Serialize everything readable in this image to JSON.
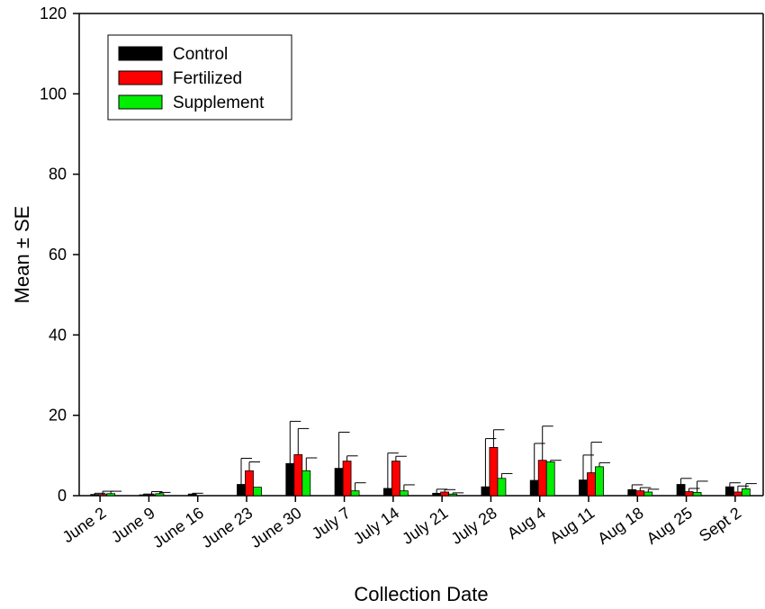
{
  "chart_data": {
    "type": "bar",
    "xlabel": "Collection Date",
    "ylabel": "Mean ± SE",
    "ylim": [
      0,
      120
    ],
    "yticks": [
      0,
      20,
      40,
      60,
      80,
      100,
      120
    ],
    "grid": false,
    "legend_position": "top-left",
    "categories": [
      "June 2",
      "June 9",
      "June 16",
      "June 23",
      "June 30",
      "July 7",
      "July 14",
      "July 21",
      "July 28",
      "Aug 4",
      "Aug 11",
      "Aug 18",
      "Aug 25",
      "Sept 2"
    ],
    "series": [
      {
        "name": "Control",
        "color": "#000000",
        "values": [
          0.3,
          0.2,
          0.4,
          2.8,
          8.0,
          6.8,
          1.8,
          0.6,
          2.2,
          3.8,
          3.9,
          1.5,
          2.8,
          2.2
        ],
        "errors": [
          0.3,
          0.2,
          0.2,
          6.5,
          10.5,
          9.0,
          8.8,
          1.0,
          12.0,
          9.2,
          6.2,
          1.2,
          1.5,
          1.0
        ]
      },
      {
        "name": "Fertilized",
        "color": "#ff0000",
        "values": [
          0.3,
          0.2,
          0.0,
          6.2,
          10.2,
          8.6,
          8.6,
          0.9,
          12.0,
          8.8,
          5.7,
          1.2,
          1.0,
          0.9
        ],
        "errors": [
          0.8,
          0.8,
          0.0,
          2.2,
          6.5,
          1.3,
          1.2,
          0.6,
          4.4,
          8.5,
          7.6,
          0.8,
          0.8,
          1.5
        ]
      },
      {
        "name": "Supplement",
        "color": "#00ee00",
        "values": [
          0.5,
          0.5,
          0.0,
          2.1,
          6.2,
          1.2,
          1.2,
          0.4,
          4.3,
          8.4,
          7.2,
          0.9,
          0.8,
          1.7
        ],
        "errors": [
          0.6,
          0.3,
          0.0,
          0.0,
          3.2,
          2.0,
          1.5,
          0.3,
          1.2,
          0.4,
          1.0,
          0.7,
          2.8,
          1.3
        ]
      }
    ]
  }
}
